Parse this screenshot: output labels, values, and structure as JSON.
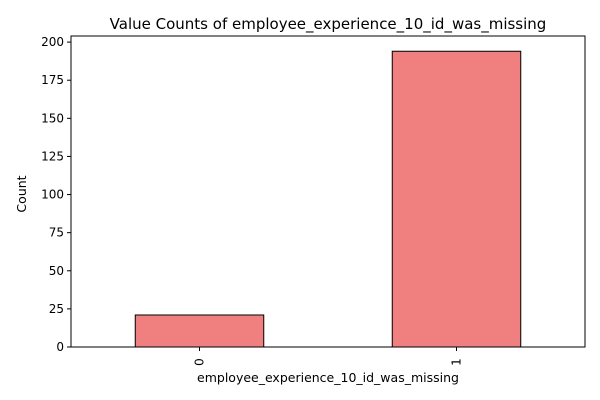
{
  "chart_data": {
    "type": "bar",
    "title": "Value Counts of employee_experience_10_id_was_missing",
    "xlabel": "employee_experience_10_id_was_missing",
    "ylabel": "Count",
    "categories": [
      "0",
      "1"
    ],
    "values": [
      21,
      194
    ],
    "ylim": [
      0,
      204
    ],
    "yticks": [
      0,
      25,
      50,
      75,
      100,
      125,
      150,
      175,
      200
    ],
    "grid": false,
    "legend": "none",
    "bar_color": "#f08080",
    "bar_edge_color": "#000000",
    "x_tick_rotation": "vertical"
  }
}
